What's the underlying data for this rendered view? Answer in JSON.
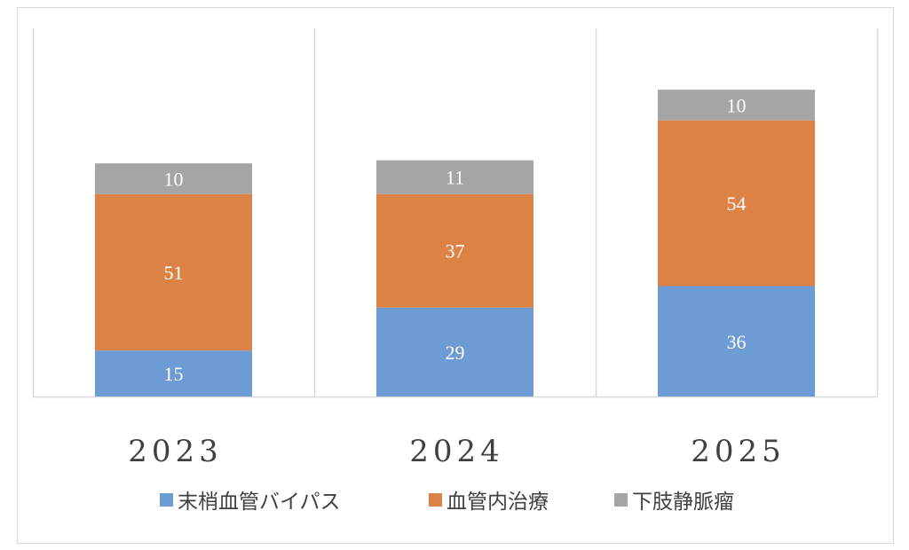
{
  "chart_data": {
    "type": "bar",
    "stacked": true,
    "title": "",
    "xlabel": "",
    "ylabel": "",
    "categories": [
      "2023",
      "2024",
      "2025"
    ],
    "ylim": [
      0,
      120
    ],
    "grid": "vertical category separators",
    "legend_position": "bottom",
    "series": [
      {
        "name": "末梢血管バイパス",
        "color": "#6d9bd3",
        "values": [
          15,
          29,
          36
        ]
      },
      {
        "name": "血管内治療",
        "color": "#dc8244",
        "values": [
          51,
          37,
          54
        ]
      },
      {
        "name": "下肢静脈瘤",
        "color": "#a5a5a5",
        "values": [
          10,
          11,
          10
        ]
      }
    ]
  }
}
